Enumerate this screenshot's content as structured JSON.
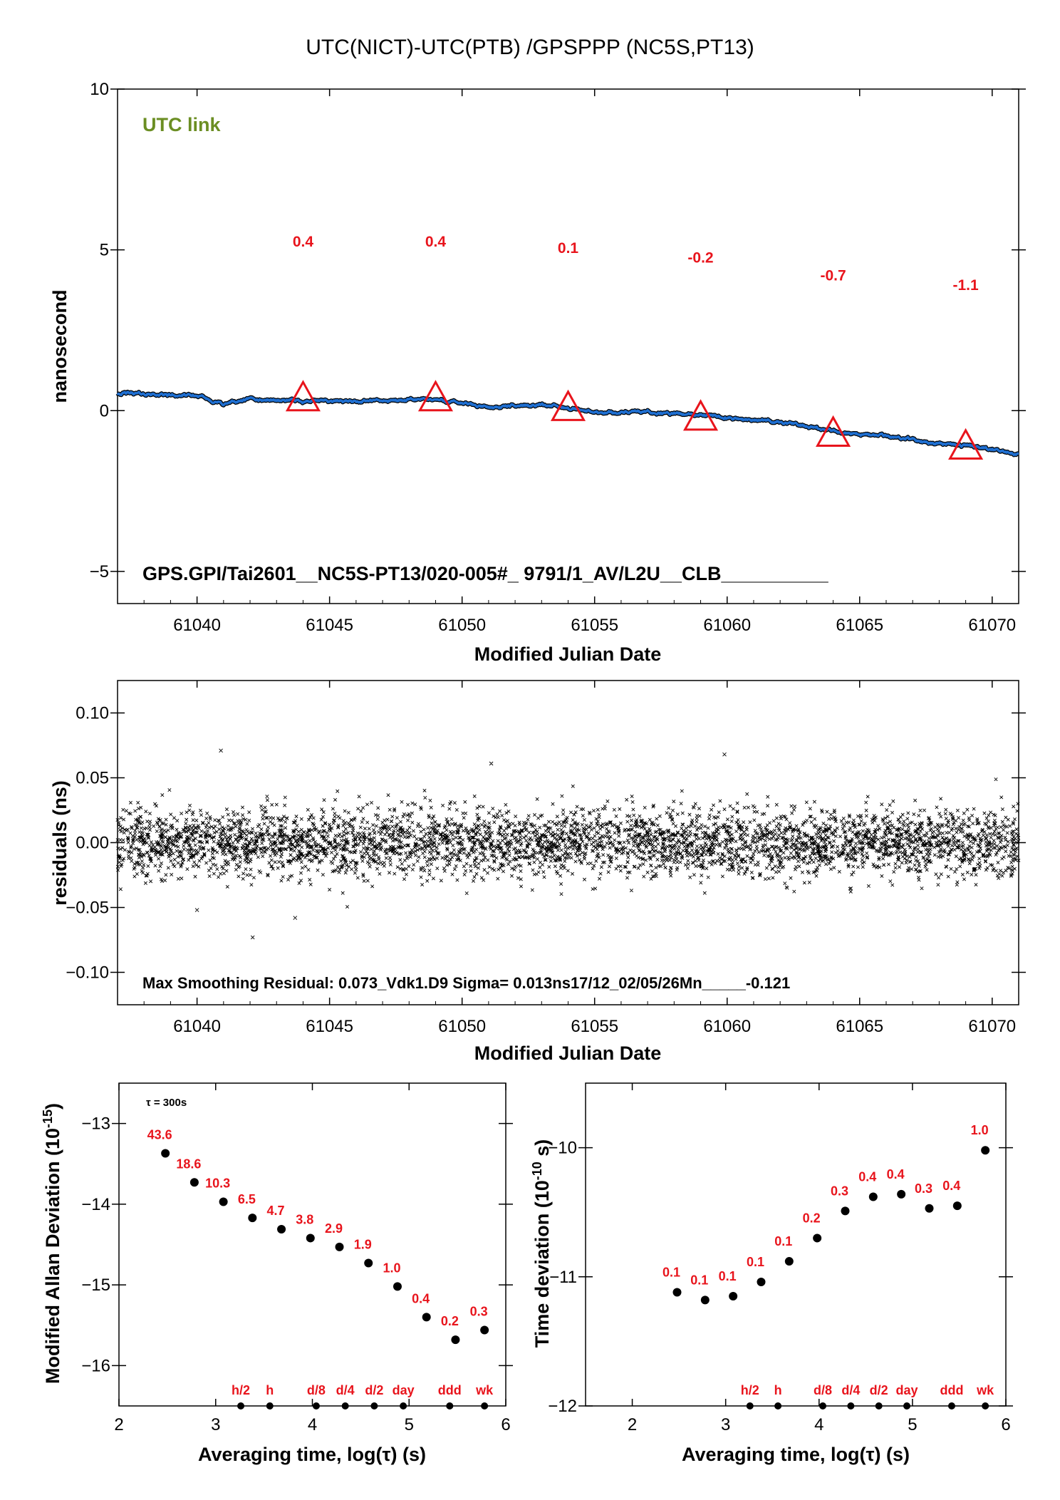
{
  "title": "UTC(NICT)-UTC(PTB)  /GPSPPP  (NC5S,PT13)",
  "colors": {
    "series": "#1f6fd1",
    "marker": "#e8141c",
    "label": "#e8141c",
    "note_green": "#6b8e23"
  },
  "chart_data": [
    {
      "type": "line",
      "xlabel": "Modified Julian Date",
      "ylabel": "nanosecond",
      "xlim": [
        61037,
        61071
      ],
      "ylim": [
        -6,
        10
      ],
      "xticks": [
        61040,
        61045,
        61050,
        61055,
        61060,
        61065,
        61070
      ],
      "yticks": [
        -5,
        0,
        5,
        10
      ],
      "annotation_top": "UTC link",
      "annotation_bottom": "GPS.GPI/Tai2601__NC5S-PT13/020-005#_  9791/1_AV/L2U__CLB__________",
      "series_trend": [
        {
          "x": 61037,
          "y": 0.55
        },
        {
          "x": 61040,
          "y": 0.45
        },
        {
          "x": 61041,
          "y": 0.2
        },
        {
          "x": 61042,
          "y": 0.35
        },
        {
          "x": 61044,
          "y": 0.3
        },
        {
          "x": 61047,
          "y": 0.3
        },
        {
          "x": 61049,
          "y": 0.35
        },
        {
          "x": 61051,
          "y": 0.1
        },
        {
          "x": 61053,
          "y": 0.2
        },
        {
          "x": 61055,
          "y": -0.05
        },
        {
          "x": 61057,
          "y": -0.05
        },
        {
          "x": 61059,
          "y": -0.15
        },
        {
          "x": 61062,
          "y": -0.35
        },
        {
          "x": 61064,
          "y": -0.65
        },
        {
          "x": 61066,
          "y": -0.8
        },
        {
          "x": 61069,
          "y": -1.1
        },
        {
          "x": 61071,
          "y": -1.35
        }
      ],
      "markers": [
        {
          "x": 61044,
          "y": 0.4,
          "label": "0.4"
        },
        {
          "x": 61049,
          "y": 0.4,
          "label": "0.4"
        },
        {
          "x": 61054,
          "y": 0.1,
          "label": "0.1"
        },
        {
          "x": 61059,
          "y": -0.2,
          "label": "-0.2"
        },
        {
          "x": 61064,
          "y": -0.7,
          "label": "-0.7"
        },
        {
          "x": 61069,
          "y": -1.1,
          "label": "-1.1"
        }
      ],
      "marker_label_y": [
        5.1,
        5.1,
        4.9,
        4.6,
        4.05,
        3.75
      ]
    },
    {
      "type": "scatter",
      "xlabel": "Modified Julian Date",
      "ylabel": "residuals (ns)",
      "xlim": [
        61037,
        61071
      ],
      "ylim": [
        -0.125,
        0.125
      ],
      "xticks": [
        61040,
        61045,
        61050,
        61055,
        61060,
        61065,
        61070
      ],
      "yticks": [
        -0.1,
        -0.05,
        0.0,
        0.05,
        0.1
      ],
      "ytick_labels": [
        "−0.10",
        "−0.05",
        "0.00",
        "0.05",
        "0.10"
      ],
      "annotation": "Max Smoothing Residual: 0.073_Vdk1.D9  Sigma= 0.013ns17/12_02/05/26Mn_____-0.121",
      "sigma": 0.013,
      "outliers": [
        {
          "x": 61040.9,
          "y": 0.071
        },
        {
          "x": 61042.1,
          "y": -0.073
        },
        {
          "x": 61059.9,
          "y": 0.068
        },
        {
          "x": 61051.1,
          "y": 0.061
        },
        {
          "x": 61040.0,
          "y": -0.052
        },
        {
          "x": 61043.7,
          "y": -0.058
        }
      ]
    },
    {
      "type": "scatter",
      "xlabel": "Averaging time, log(τ) (s)",
      "ylabel": "Modified Allan Deviation (10⁻¹⁵)",
      "ylabel_main": "Modified Allan Deviation (10",
      "ylabel_sup": "-15",
      "ylabel_end": ")",
      "xlim": [
        2,
        6
      ],
      "ylim": [
        -16.5,
        -12.5
      ],
      "xticks": [
        2,
        3,
        4,
        5,
        6
      ],
      "yticks": [
        -16,
        -15,
        -14,
        -13
      ],
      "ytick_labels": [
        "−16",
        "−15",
        "−14",
        "−13"
      ],
      "annotation": "τ = 300s",
      "points": [
        {
          "x": 2.48,
          "y": -13.37,
          "label": "43.6"
        },
        {
          "x": 2.78,
          "y": -13.73,
          "label": "18.6"
        },
        {
          "x": 3.08,
          "y": -13.97,
          "label": "10.3"
        },
        {
          "x": 3.38,
          "y": -14.17,
          "label": "6.5"
        },
        {
          "x": 3.68,
          "y": -14.31,
          "label": "4.7"
        },
        {
          "x": 3.98,
          "y": -14.42,
          "label": "3.8"
        },
        {
          "x": 4.28,
          "y": -14.53,
          "label": "2.9"
        },
        {
          "x": 4.58,
          "y": -14.73,
          "label": "1.9"
        },
        {
          "x": 4.88,
          "y": -15.02,
          "label": "1.0"
        },
        {
          "x": 5.18,
          "y": -15.4,
          "label": "0.4"
        },
        {
          "x": 5.48,
          "y": -15.68,
          "label": "0.2"
        },
        {
          "x": 5.78,
          "y": -15.56,
          "label": "0.3"
        }
      ],
      "time_markers": [
        {
          "x": 3.26,
          "label": "h/2"
        },
        {
          "x": 3.56,
          "label": "h"
        },
        {
          "x": 4.04,
          "label": "d/8"
        },
        {
          "x": 4.34,
          "label": "d/4"
        },
        {
          "x": 4.64,
          "label": "d/2"
        },
        {
          "x": 4.94,
          "label": "day"
        },
        {
          "x": 5.42,
          "label": "ddd"
        },
        {
          "x": 5.78,
          "label": "wk"
        }
      ]
    },
    {
      "type": "scatter",
      "xlabel": "Averaging time, log(τ) (s)",
      "ylabel": "Time deviation (10⁻¹⁰ s)",
      "ylabel_main": "Time deviation (10",
      "ylabel_sup": "-10",
      "ylabel_end": " s)",
      "xlim": [
        1.5,
        6
      ],
      "ylim": [
        -12,
        -9.5
      ],
      "xticks": [
        2,
        3,
        4,
        5,
        6
      ],
      "yticks": [
        -12,
        -11,
        -10
      ],
      "ytick_labels": [
        "−12",
        "−11",
        "−10"
      ],
      "points": [
        {
          "x": 2.48,
          "y": -11.12,
          "label": "0.1"
        },
        {
          "x": 2.78,
          "y": -11.18,
          "label": "0.1"
        },
        {
          "x": 3.08,
          "y": -11.15,
          "label": "0.1"
        },
        {
          "x": 3.38,
          "y": -11.04,
          "label": "0.1"
        },
        {
          "x": 3.68,
          "y": -10.88,
          "label": "0.1"
        },
        {
          "x": 3.98,
          "y": -10.7,
          "label": "0.2"
        },
        {
          "x": 4.28,
          "y": -10.49,
          "label": "0.3"
        },
        {
          "x": 4.58,
          "y": -10.38,
          "label": "0.4"
        },
        {
          "x": 4.88,
          "y": -10.36,
          "label": "0.4"
        },
        {
          "x": 5.18,
          "y": -10.47,
          "label": "0.3"
        },
        {
          "x": 5.48,
          "y": -10.45,
          "label": "0.4"
        },
        {
          "x": 5.78,
          "y": -10.02,
          "label": "1.0"
        }
      ],
      "time_markers": [
        {
          "x": 3.26,
          "label": "h/2"
        },
        {
          "x": 3.56,
          "label": "h"
        },
        {
          "x": 4.04,
          "label": "d/8"
        },
        {
          "x": 4.34,
          "label": "d/4"
        },
        {
          "x": 4.64,
          "label": "d/2"
        },
        {
          "x": 4.94,
          "label": "day"
        },
        {
          "x": 5.42,
          "label": "ddd"
        },
        {
          "x": 5.78,
          "label": "wk"
        }
      ]
    }
  ]
}
